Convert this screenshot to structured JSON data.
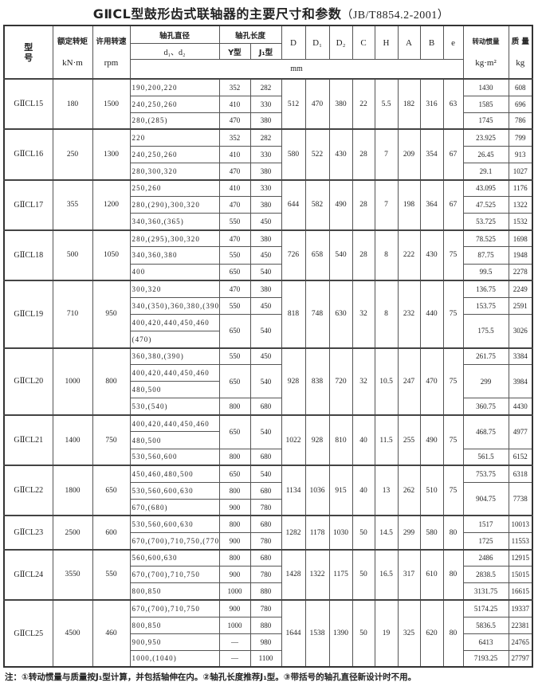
{
  "title": {
    "main": "GⅡCL型鼓形齿式联轴器的主要尺寸和参数",
    "standard": "（JB/T8854.2-2001）"
  },
  "header": {
    "model": "型号",
    "torque": "额定转矩",
    "torque_unit": "kN·m",
    "speed": "许用转速",
    "speed_unit": "rpm",
    "bore_dia": "轴孔直径",
    "bore_dia_sub": "d₁、d₂",
    "bore_len": "轴孔长度",
    "y_type": "Y型",
    "j1_type": "J₁型",
    "D": "D",
    "D1": "D₁",
    "D2": "D₂",
    "C": "C",
    "H": "H",
    "A": "A",
    "B": "B",
    "e": "e",
    "mm": "mm",
    "inertia": "转动惯量",
    "inertia_unit": "kg·m²",
    "mass": "质 量",
    "mass_unit": "kg"
  },
  "models": [
    {
      "name": "GⅡCL15",
      "torque": "180",
      "speed": "1500",
      "dims": [
        "512",
        "470",
        "380",
        "22",
        "5.5",
        "182",
        "316",
        "63"
      ],
      "bores": [
        "190,200,220",
        "240,250,260",
        "280,(285)"
      ],
      "lengths": [
        {
          "y": "352",
          "j1": "282",
          "span": 1
        },
        {
          "y": "410",
          "j1": "330",
          "span": 1
        },
        {
          "y": "470",
          "j1": "380",
          "span": 1
        }
      ],
      "inertia": [
        {
          "value": "1430",
          "mass": "608",
          "span": 1
        },
        {
          "value": "1585",
          "mass": "696",
          "span": 1
        },
        {
          "value": "1745",
          "mass": "786",
          "span": 1
        }
      ]
    },
    {
      "name": "GⅡCL16",
      "torque": "250",
      "speed": "1300",
      "dims": [
        "580",
        "522",
        "430",
        "28",
        "7",
        "209",
        "354",
        "67"
      ],
      "bores": [
        "220",
        "240,250,260",
        "280,300,320"
      ],
      "lengths": [
        {
          "y": "352",
          "j1": "282",
          "span": 1
        },
        {
          "y": "410",
          "j1": "330",
          "span": 1
        },
        {
          "y": "470",
          "j1": "380",
          "span": 1
        }
      ],
      "inertia": [
        {
          "value": "23.925",
          "mass": "799",
          "span": 1
        },
        {
          "value": "26.45",
          "mass": "913",
          "span": 1
        },
        {
          "value": "29.1",
          "mass": "1027",
          "span": 1
        }
      ]
    },
    {
      "name": "GⅡCL17",
      "torque": "355",
      "speed": "1200",
      "dims": [
        "644",
        "582",
        "490",
        "28",
        "7",
        "198",
        "364",
        "67"
      ],
      "bores": [
        "250,260",
        "280,(290),300,320",
        "340,360,(365)"
      ],
      "lengths": [
        {
          "y": "410",
          "j1": "330",
          "span": 1
        },
        {
          "y": "470",
          "j1": "380",
          "span": 1
        },
        {
          "y": "550",
          "j1": "450",
          "span": 1
        }
      ],
      "inertia": [
        {
          "value": "43.095",
          "mass": "1176",
          "span": 1
        },
        {
          "value": "47.525",
          "mass": "1322",
          "span": 1
        },
        {
          "value": "53.725",
          "mass": "1532",
          "span": 1
        }
      ]
    },
    {
      "name": "GⅡCL18",
      "torque": "500",
      "speed": "1050",
      "dims": [
        "726",
        "658",
        "540",
        "28",
        "8",
        "222",
        "430",
        "75"
      ],
      "bores": [
        "280,(295),300,320",
        "340,360,380",
        "400"
      ],
      "lengths": [
        {
          "y": "470",
          "j1": "380",
          "span": 1
        },
        {
          "y": "550",
          "j1": "450",
          "span": 1
        },
        {
          "y": "650",
          "j1": "540",
          "span": 1
        }
      ],
      "inertia": [
        {
          "value": "78.525",
          "mass": "1698",
          "span": 1
        },
        {
          "value": "87.75",
          "mass": "1948",
          "span": 1
        },
        {
          "value": "99.5",
          "mass": "2278",
          "span": 1
        }
      ]
    },
    {
      "name": "GⅡCL19",
      "torque": "710",
      "speed": "950",
      "dims": [
        "818",
        "748",
        "630",
        "32",
        "8",
        "232",
        "440",
        "75"
      ],
      "bores": [
        "300,320",
        "340,(350),360,380,(390)",
        "400,420,440,450,460",
        "(470)"
      ],
      "lengths": [
        {
          "y": "470",
          "j1": "380",
          "span": 1
        },
        {
          "y": "550",
          "j1": "450",
          "span": 1
        },
        {
          "y": "650",
          "j1": "540",
          "span": 2
        }
      ],
      "inertia": [
        {
          "value": "136.75",
          "mass": "2249",
          "span": 1
        },
        {
          "value": "153.75",
          "mass": "2591",
          "span": 1
        },
        {
          "value": "175.5",
          "mass": "3026",
          "span": 2
        }
      ]
    },
    {
      "name": "GⅡCL20",
      "torque": "1000",
      "speed": "800",
      "dims": [
        "928",
        "838",
        "720",
        "32",
        "10.5",
        "247",
        "470",
        "75"
      ],
      "bores": [
        "360,380,(390)",
        "400,420,440,450,460",
        "480,500",
        "530,(540)"
      ],
      "lengths": [
        {
          "y": "550",
          "j1": "450",
          "span": 1
        },
        {
          "y": "650",
          "j1": "540",
          "span": 2
        },
        {
          "y": "800",
          "j1": "680",
          "span": 1
        }
      ],
      "inertia": [
        {
          "value": "261.75",
          "mass": "3384",
          "span": 1
        },
        {
          "value": "299",
          "mass": "3984",
          "span": 2
        },
        {
          "value": "360.75",
          "mass": "4430",
          "span": 1
        }
      ]
    },
    {
      "name": "GⅡCL21",
      "torque": "1400",
      "speed": "750",
      "dims": [
        "1022",
        "928",
        "810",
        "40",
        "11.5",
        "255",
        "490",
        "75"
      ],
      "bores": [
        "400,420,440,450,460",
        "480,500",
        "530,560,600"
      ],
      "lengths": [
        {
          "y": "650",
          "j1": "540",
          "span": 2
        },
        {
          "y": "800",
          "j1": "680",
          "span": 1
        }
      ],
      "inertia": [
        {
          "value": "468.75",
          "mass": "4977",
          "span": 2
        },
        {
          "value": "561.5",
          "mass": "6152",
          "span": 1
        }
      ]
    },
    {
      "name": "GⅡCL22",
      "torque": "1800",
      "speed": "650",
      "dims": [
        "1134",
        "1036",
        "915",
        "40",
        "13",
        "262",
        "510",
        "75"
      ],
      "bores": [
        "450,460,480,500",
        "530,560,600,630",
        "670,(680)"
      ],
      "lengths": [
        {
          "y": "650",
          "j1": "540",
          "span": 1
        },
        {
          "y": "800",
          "j1": "680",
          "span": 1
        },
        {
          "y": "900",
          "j1": "780",
          "span": 1
        }
      ],
      "inertia": [
        {
          "value": "753.75",
          "mass": "6318",
          "span": 1
        },
        {
          "value": "904.75",
          "mass": "7738",
          "span": 2
        }
      ]
    },
    {
      "name": "GⅡCL23",
      "torque": "2500",
      "speed": "600",
      "dims": [
        "1282",
        "1178",
        "1030",
        "50",
        "14.5",
        "299",
        "580",
        "80"
      ],
      "bores": [
        "530,560,600,630",
        "670,(700),710,750,(770)"
      ],
      "lengths": [
        {
          "y": "800",
          "j1": "680",
          "span": 1
        },
        {
          "y": "900",
          "j1": "780",
          "span": 1
        }
      ],
      "inertia": [
        {
          "value": "1517",
          "mass": "10013",
          "span": 1
        },
        {
          "value": "1725",
          "mass": "11553",
          "span": 1
        }
      ]
    },
    {
      "name": "GⅡCL24",
      "torque": "3550",
      "speed": "550",
      "dims": [
        "1428",
        "1322",
        "1175",
        "50",
        "16.5",
        "317",
        "610",
        "80"
      ],
      "bores": [
        "560,600,630",
        "670,(700),710,750",
        "800,850"
      ],
      "lengths": [
        {
          "y": "800",
          "j1": "680",
          "span": 1
        },
        {
          "y": "900",
          "j1": "780",
          "span": 1
        },
        {
          "y": "1000",
          "j1": "880",
          "span": 1
        }
      ],
      "inertia": [
        {
          "value": "2486",
          "mass": "12915",
          "span": 1
        },
        {
          "value": "2838.5",
          "mass": "15015",
          "span": 1
        },
        {
          "value": "3131.75",
          "mass": "16615",
          "span": 1
        }
      ]
    },
    {
      "name": "GⅡCL25",
      "torque": "4500",
      "speed": "460",
      "dims": [
        "1644",
        "1538",
        "1390",
        "50",
        "19",
        "325",
        "620",
        "80"
      ],
      "bores": [
        "670,(700),710,750",
        "800,850",
        "900,950",
        "1000,(1040)"
      ],
      "lengths": [
        {
          "y": "900",
          "j1": "780",
          "span": 1
        },
        {
          "y": "1000",
          "j1": "880",
          "span": 1
        },
        {
          "y": "—",
          "j1": "980",
          "span": 1
        },
        {
          "y": "—",
          "j1": "1100",
          "span": 1
        }
      ],
      "inertia": [
        {
          "value": "5174.25",
          "mass": "19337",
          "span": 1
        },
        {
          "value": "5836.5",
          "mass": "22381",
          "span": 1
        },
        {
          "value": "6413",
          "mass": "24765",
          "span": 1
        },
        {
          "value": "7193.25",
          "mass": "27797",
          "span": 1
        }
      ]
    }
  ],
  "note": "注：①转动惯量与质量按J₁型计算，并包括轴伸在内。②轴孔长度推荐J₁型。③带括号的轴孔直径新设计时不用。"
}
